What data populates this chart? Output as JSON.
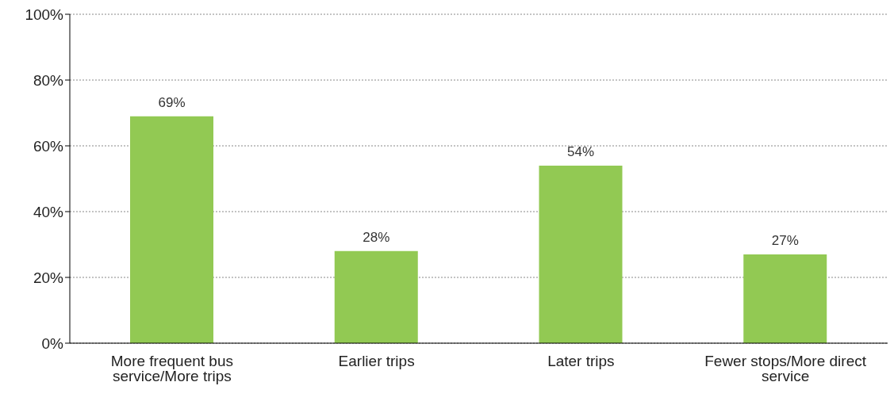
{
  "chart_data": {
    "type": "bar",
    "categories": [
      "More frequent bus service/More trips",
      "Earlier trips",
      "Later trips",
      "Fewer stops/More direct service"
    ],
    "values": [
      69,
      28,
      54,
      27
    ],
    "value_labels": [
      "69%",
      "28%",
      "54%",
      "27%"
    ],
    "color": "#92c953",
    "ylim": [
      0,
      100
    ],
    "yticks": [
      {
        "value": 0,
        "label": "0%"
      },
      {
        "value": 20,
        "label": "20%"
      },
      {
        "value": 40,
        "label": "40%"
      },
      {
        "value": 60,
        "label": "60%"
      },
      {
        "value": 80,
        "label": "80%"
      },
      {
        "value": 100,
        "label": "100%"
      }
    ],
    "grid": "y",
    "legend": false
  }
}
